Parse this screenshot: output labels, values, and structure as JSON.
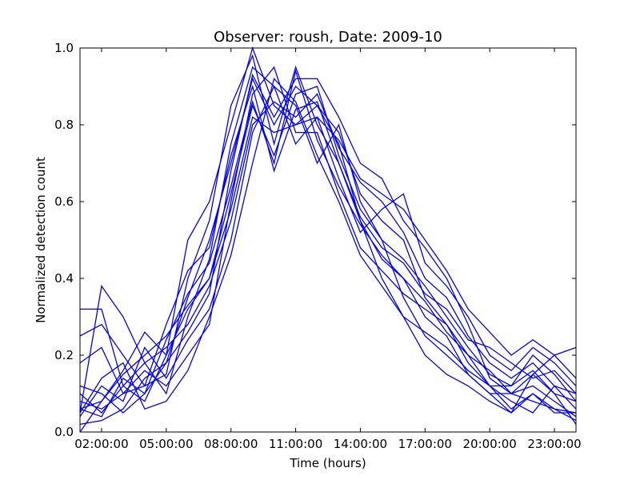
{
  "chart_data": {
    "type": "line",
    "title": "Observer: roush, Date: 2009-10",
    "xlabel": "Time (hours)",
    "ylabel": "Normalized detection count",
    "x_ticks": [
      "02:00:00",
      "05:00:00",
      "08:00:00",
      "11:00:00",
      "14:00:00",
      "17:00:00",
      "20:00:00",
      "23:00:00"
    ],
    "x_tick_values": [
      2,
      5,
      8,
      11,
      14,
      17,
      20,
      23
    ],
    "y_ticks": [
      "0.0",
      "0.2",
      "0.4",
      "0.6",
      "0.8",
      "1.0"
    ],
    "y_tick_values": [
      0.0,
      0.2,
      0.4,
      0.6,
      0.8,
      1.0
    ],
    "xlim": [
      1,
      24
    ],
    "ylim": [
      0.0,
      1.0
    ],
    "grid": false,
    "line_color": "#0000ff",
    "x": [
      1,
      2,
      3,
      4,
      5,
      6,
      7,
      8,
      9,
      10,
      11,
      12,
      13,
      14,
      15,
      16,
      17,
      18,
      19,
      20,
      21,
      22,
      23,
      24
    ],
    "series": [
      {
        "values": [
          0.32,
          0.32,
          0.12,
          0.08,
          0.2,
          0.5,
          0.6,
          0.8,
          1.0,
          0.85,
          0.8,
          0.85,
          0.75,
          0.55,
          0.45,
          0.4,
          0.3,
          0.25,
          0.15,
          0.1,
          0.1,
          0.15,
          0.2,
          0.22
        ]
      },
      {
        "values": [
          0.05,
          0.38,
          0.3,
          0.18,
          0.1,
          0.3,
          0.45,
          0.75,
          0.95,
          0.9,
          0.85,
          0.7,
          0.8,
          0.6,
          0.5,
          0.35,
          0.25,
          0.2,
          0.15,
          0.1,
          0.05,
          0.1,
          0.05,
          0.05
        ]
      },
      {
        "values": [
          0.25,
          0.28,
          0.2,
          0.12,
          0.15,
          0.4,
          0.55,
          0.85,
          0.98,
          0.75,
          0.95,
          0.8,
          0.7,
          0.55,
          0.4,
          0.3,
          0.2,
          0.15,
          0.12,
          0.08,
          0.05,
          0.15,
          0.1,
          0.02
        ]
      },
      {
        "values": [
          0.12,
          0.1,
          0.05,
          0.1,
          0.18,
          0.35,
          0.5,
          0.7,
          0.92,
          0.8,
          0.9,
          0.85,
          0.78,
          0.62,
          0.55,
          0.5,
          0.35,
          0.28,
          0.18,
          0.12,
          0.08,
          0.05,
          0.12,
          0.1
        ]
      },
      {
        "values": [
          0.06,
          0.08,
          0.15,
          0.2,
          0.25,
          0.33,
          0.4,
          0.62,
          0.85,
          0.72,
          0.88,
          0.9,
          0.72,
          0.58,
          0.5,
          0.45,
          0.38,
          0.3,
          0.22,
          0.15,
          0.12,
          0.2,
          0.15,
          0.08
        ]
      },
      {
        "values": [
          0.1,
          0.05,
          0.12,
          0.18,
          0.22,
          0.28,
          0.38,
          0.55,
          0.8,
          0.86,
          0.82,
          0.88,
          0.74,
          0.65,
          0.6,
          0.52,
          0.4,
          0.35,
          0.25,
          0.18,
          0.14,
          0.18,
          0.12,
          0.06
        ]
      },
      {
        "values": [
          0.04,
          0.12,
          0.08,
          0.22,
          0.14,
          0.24,
          0.32,
          0.5,
          0.78,
          0.9,
          0.75,
          0.82,
          0.66,
          0.52,
          0.58,
          0.62,
          0.44,
          0.38,
          0.3,
          0.2,
          0.16,
          0.22,
          0.18,
          0.12
        ]
      },
      {
        "values": [
          0.08,
          0.06,
          0.1,
          0.16,
          0.12,
          0.2,
          0.28,
          0.6,
          0.88,
          0.95,
          0.78,
          0.78,
          0.62,
          0.48,
          0.42,
          0.36,
          0.32,
          0.28,
          0.2,
          0.16,
          0.1,
          0.12,
          0.08,
          0.04
        ]
      },
      {
        "values": [
          0.02,
          0.03,
          0.06,
          0.14,
          0.18,
          0.26,
          0.36,
          0.68,
          0.93,
          0.82,
          0.92,
          0.92,
          0.82,
          0.7,
          0.66,
          0.55,
          0.48,
          0.4,
          0.28,
          0.14,
          0.1,
          0.08,
          0.06,
          0.03
        ]
      },
      {
        "values": [
          0.18,
          0.22,
          0.1,
          0.12,
          0.28,
          0.42,
          0.48,
          0.72,
          0.9,
          0.68,
          0.84,
          0.86,
          0.7,
          0.56,
          0.48,
          0.44,
          0.36,
          0.32,
          0.24,
          0.22,
          0.18,
          0.14,
          0.16,
          0.1
        ]
      },
      {
        "values": [
          0.05,
          0.14,
          0.18,
          0.06,
          0.08,
          0.16,
          0.3,
          0.46,
          0.7,
          0.92,
          0.86,
          0.72,
          0.6,
          0.46,
          0.38,
          0.3,
          0.26,
          0.22,
          0.16,
          0.12,
          0.06,
          0.1,
          0.06,
          0.05
        ]
      },
      {
        "values": [
          0.0,
          0.08,
          0.16,
          0.26,
          0.2,
          0.32,
          0.4,
          0.58,
          0.82,
          0.78,
          0.8,
          0.82,
          0.76,
          0.66,
          0.62,
          0.58,
          0.5,
          0.42,
          0.32,
          0.26,
          0.2,
          0.24,
          0.2,
          0.14
        ]
      },
      {
        "values": [
          0.06,
          0.04,
          0.14,
          0.1,
          0.24,
          0.36,
          0.44,
          0.64,
          0.86,
          0.7,
          0.94,
          0.76,
          0.64,
          0.54,
          0.46,
          0.4,
          0.34,
          0.26,
          0.2,
          0.12,
          0.12,
          0.16,
          0.1,
          0.08
        ]
      }
    ]
  }
}
